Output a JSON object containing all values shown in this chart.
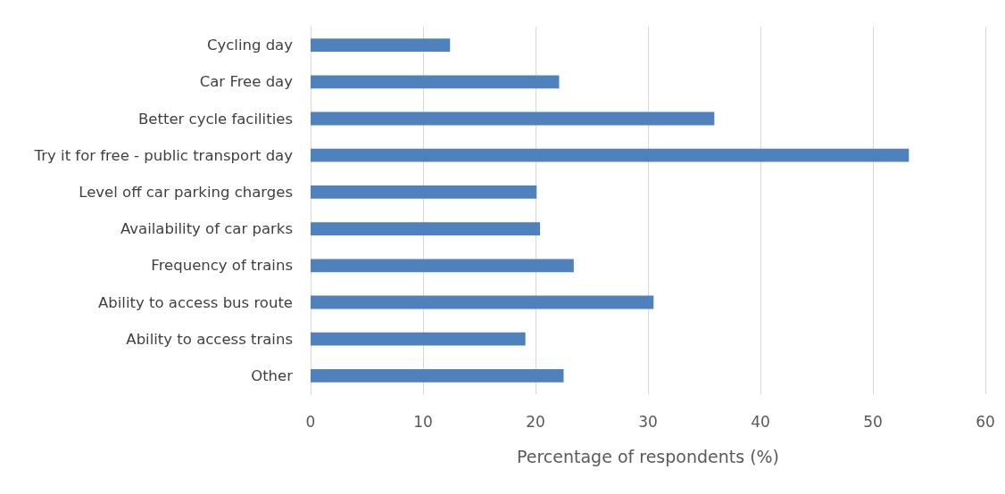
{
  "chart_data": {
    "type": "bar",
    "orientation": "horizontal",
    "xlabel": "Percentage of respondents (%)",
    "categories": [
      "Cycling day",
      "Car Free day",
      "Better cycle facilities",
      "Try it for free - public transport day",
      "Level off car parking charges",
      "Availability of car parks",
      "Frequency of trains",
      "Ability to access bus route",
      "Ability to access trains",
      "Other"
    ],
    "values": [
      12.4,
      22.1,
      35.9,
      53.2,
      20.1,
      20.4,
      23.4,
      30.5,
      19.1,
      22.5
    ],
    "color": "#4f81bd",
    "xlim": [
      0,
      60
    ],
    "xticks": [
      0,
      10,
      20,
      30,
      40,
      50,
      60
    ],
    "grid": "x"
  }
}
